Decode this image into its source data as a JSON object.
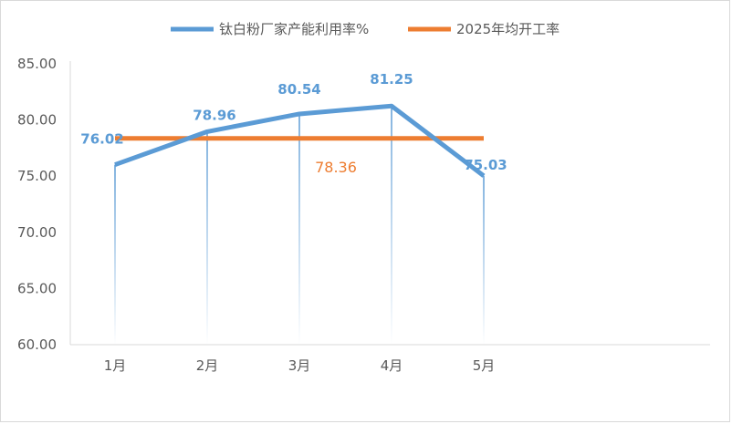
{
  "chart_data": {
    "type": "line",
    "categories": [
      "1月",
      "2月",
      "3月",
      "4月",
      "5月"
    ],
    "series": [
      {
        "name": "钛白粉厂家产能利用率%",
        "values": [
          76.02,
          78.96,
          80.54,
          81.25,
          75.03
        ],
        "labels": [
          "76.02",
          "78.96",
          "80.54",
          "81.25",
          "75.03"
        ],
        "color": "#5b9bd5"
      },
      {
        "name": "2025年均开工率",
        "values": [
          78.36,
          78.36,
          78.36,
          78.36,
          78.36
        ],
        "label": "78.36",
        "color": "#ed7d31"
      }
    ],
    "ylim": [
      60,
      85
    ],
    "yticks": [
      "60.00",
      "65.00",
      "70.00",
      "75.00",
      "80.00",
      "85.00"
    ],
    "ytick_values": [
      60,
      65,
      70,
      75,
      80,
      85
    ],
    "legend": "top",
    "grid": false,
    "drop_lines": true
  }
}
